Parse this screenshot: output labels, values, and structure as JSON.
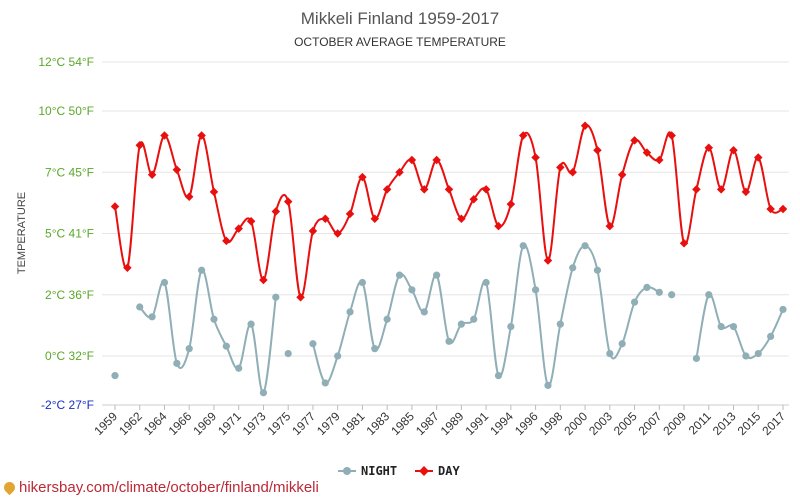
{
  "header": {
    "title": "Mikkeli Finland 1959-2017",
    "subtitle": "OCTOBER AVERAGE TEMPERATURE"
  },
  "watermark": "hikersbay.com/climate/october/finland/mikkeli",
  "colors": {
    "day": "#e8100f",
    "night": "#90aeb6",
    "tick_green": "#5aa82a",
    "tick_blue": "#1a2ec2",
    "grid": "#e6e6e6",
    "title": "#555555"
  },
  "chart_data": {
    "type": "line",
    "title": "Mikkeli Finland 1959-2017",
    "subtitle": "OCTOBER AVERAGE TEMPERATURE",
    "ylabel": "TEMPERATURE",
    "xlabel": "",
    "ylim": [
      -2,
      12
    ],
    "grid": true,
    "legend_position": "bottom-center",
    "y_ticks": [
      {
        "value": 12,
        "label": "12°C 54°F"
      },
      {
        "value": 10,
        "label": "10°C 50°F"
      },
      {
        "value": 7.5,
        "label": "7°C 45°F"
      },
      {
        "value": 5,
        "label": "5°C 41°F"
      },
      {
        "value": 2.5,
        "label": "2°C 36°F"
      },
      {
        "value": 0,
        "label": "0°C 32°F"
      },
      {
        "value": -2,
        "label": "-2°C 27°F"
      }
    ],
    "x_tick_labels": [
      "1959",
      "1962",
      "1964",
      "1966",
      "1969",
      "1971",
      "1973",
      "1975",
      "1977",
      "1979",
      "1981",
      "1983",
      "1985",
      "1987",
      "1989",
      "1991",
      "1994",
      "1996",
      "1998",
      "2000",
      "2003",
      "2005",
      "2007",
      "2009",
      "2011",
      "2013",
      "2015",
      "2017"
    ],
    "series": [
      {
        "name": "DAY",
        "color": "#e8100f",
        "values": [
          6.1,
          3.6,
          8.6,
          7.4,
          9.0,
          7.6,
          6.5,
          9.0,
          6.7,
          4.7,
          5.2,
          5.5,
          3.1,
          5.9,
          6.3,
          2.4,
          5.1,
          5.6,
          5.0,
          5.8,
          7.3,
          5.6,
          6.8,
          7.5,
          8.0,
          6.8,
          8.0,
          6.8,
          5.6,
          6.4,
          6.8,
          5.3,
          6.2,
          9.0,
          8.1,
          3.9,
          7.7,
          7.5,
          9.4,
          8.4,
          5.3,
          7.4,
          8.8,
          8.3,
          8.0,
          9.0,
          4.6,
          6.8,
          8.5,
          6.8,
          8.4,
          6.7,
          8.1,
          6.0,
          6.0
        ],
        "x_index": [
          0,
          1,
          2,
          3,
          4,
          5,
          6,
          7,
          8,
          9,
          10,
          11,
          12,
          13,
          14,
          15,
          16,
          17,
          18,
          19,
          20,
          21,
          22,
          23,
          24,
          25,
          26,
          27,
          28,
          29,
          30,
          31,
          32,
          33,
          34,
          35,
          36,
          37,
          38,
          39,
          40,
          41,
          42,
          43,
          44,
          45,
          46,
          47,
          48,
          49,
          50,
          51,
          52,
          53,
          54
        ]
      },
      {
        "name": "NIGHT",
        "color": "#90aeb6",
        "segments": [
          {
            "x_index": [
              0
            ],
            "values": [
              -0.8
            ]
          },
          {
            "x_index": [
              2,
              3,
              4,
              5,
              6,
              7,
              8,
              9,
              10,
              11,
              12,
              13
            ],
            "values": [
              2.0,
              1.6,
              3.0,
              -0.3,
              0.3,
              3.5,
              1.5,
              0.4,
              -0.5,
              1.3,
              -1.5,
              2.4
            ]
          },
          {
            "x_index": [
              14
            ],
            "values": [
              0.1
            ]
          },
          {
            "x_index": [
              16,
              17,
              18,
              19,
              20,
              21,
              22,
              23,
              24,
              25,
              26,
              27,
              28,
              29,
              30,
              31,
              32,
              33,
              34,
              35,
              36,
              37,
              38,
              39,
              40,
              41,
              42,
              43,
              44
            ],
            "values": [
              0.5,
              -1.1,
              0.0,
              1.8,
              3.0,
              0.3,
              1.5,
              3.3,
              2.7,
              1.8,
              3.3,
              0.6,
              1.3,
              1.5,
              3.0,
              -0.8,
              1.2,
              4.5,
              2.7,
              -1.2,
              1.3,
              3.6,
              4.5,
              3.5,
              0.1,
              0.5,
              2.2,
              2.8,
              2.6
            ]
          },
          {
            "x_index": [
              45
            ],
            "values": [
              2.5
            ]
          },
          {
            "x_index": [
              47,
              48,
              49,
              50,
              51,
              52,
              53,
              54
            ],
            "values": [
              -0.1,
              2.5,
              1.2,
              1.2,
              0.0,
              0.1,
              0.8,
              1.9
            ]
          }
        ]
      }
    ],
    "legend": [
      {
        "name": "NIGHT",
        "color": "#90aeb6"
      },
      {
        "name": "DAY",
        "color": "#e8100f"
      }
    ]
  }
}
